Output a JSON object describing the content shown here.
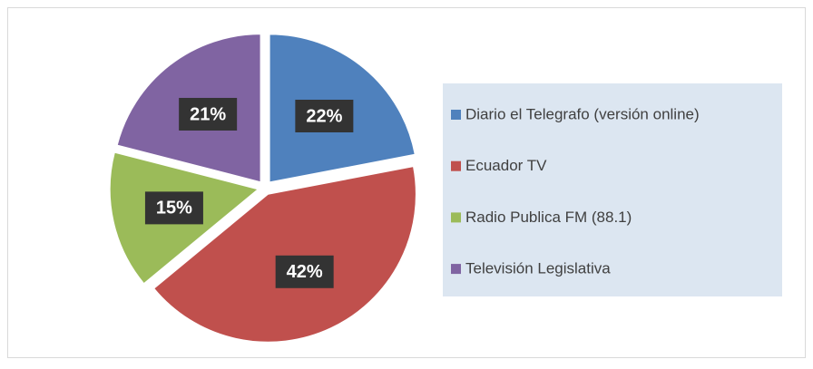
{
  "chart_data": {
    "type": "pie",
    "categories": [
      "Diario el Telegrafo (versión online)",
      "Ecuador TV",
      "Radio Publica FM (88.1)",
      "Televisión Legislativa"
    ],
    "values": [
      22,
      42,
      15,
      21
    ],
    "value_labels": [
      "22%",
      "42%",
      "15%",
      "21%"
    ],
    "colors": [
      "#4f81bd",
      "#c0504d",
      "#9bbb59",
      "#8064a2"
    ],
    "legend": "right"
  }
}
